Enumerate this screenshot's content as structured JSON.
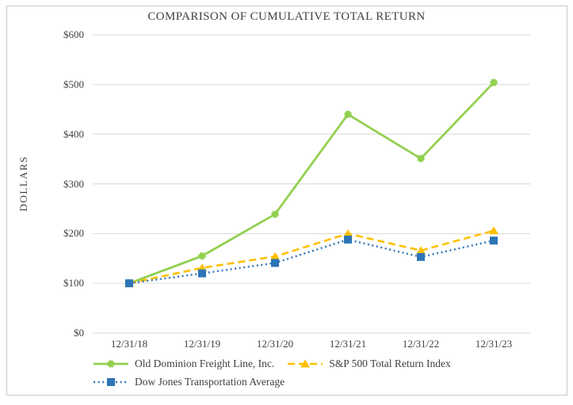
{
  "chart_data": {
    "type": "line",
    "title": "COMPARISON OF CUMULATIVE TOTAL RETURN",
    "xlabel": "",
    "ylabel": "DOLLARS",
    "categories": [
      "12/31/18",
      "12/31/19",
      "12/31/20",
      "12/31/21",
      "12/31/22",
      "12/31/23"
    ],
    "series": [
      {
        "name": "Old Dominion Freight Line, Inc.",
        "values": [
          100,
          155,
          239,
          440,
          351,
          504
        ],
        "color": "#92d050",
        "line_style": "solid",
        "marker": "circle"
      },
      {
        "name": "S&P 500 Total Return Index",
        "values": [
          100,
          131,
          154,
          200,
          166,
          206
        ],
        "color": "#ffc000",
        "line_style": "dashed",
        "marker": "triangle"
      },
      {
        "name": "Dow Jones Transportation Average",
        "values": [
          100,
          120,
          141,
          188,
          153,
          186
        ],
        "color": "#2e75b6",
        "line_style": "dotted",
        "marker": "square"
      }
    ],
    "y_tick_labels": [
      "$0",
      "$100",
      "$200",
      "$300",
      "$400",
      "$500",
      "$600"
    ],
    "ylim": [
      0,
      600
    ],
    "grid": "horizontal",
    "gridline_color": "#d9d9d9",
    "legend_position": "bottom"
  }
}
